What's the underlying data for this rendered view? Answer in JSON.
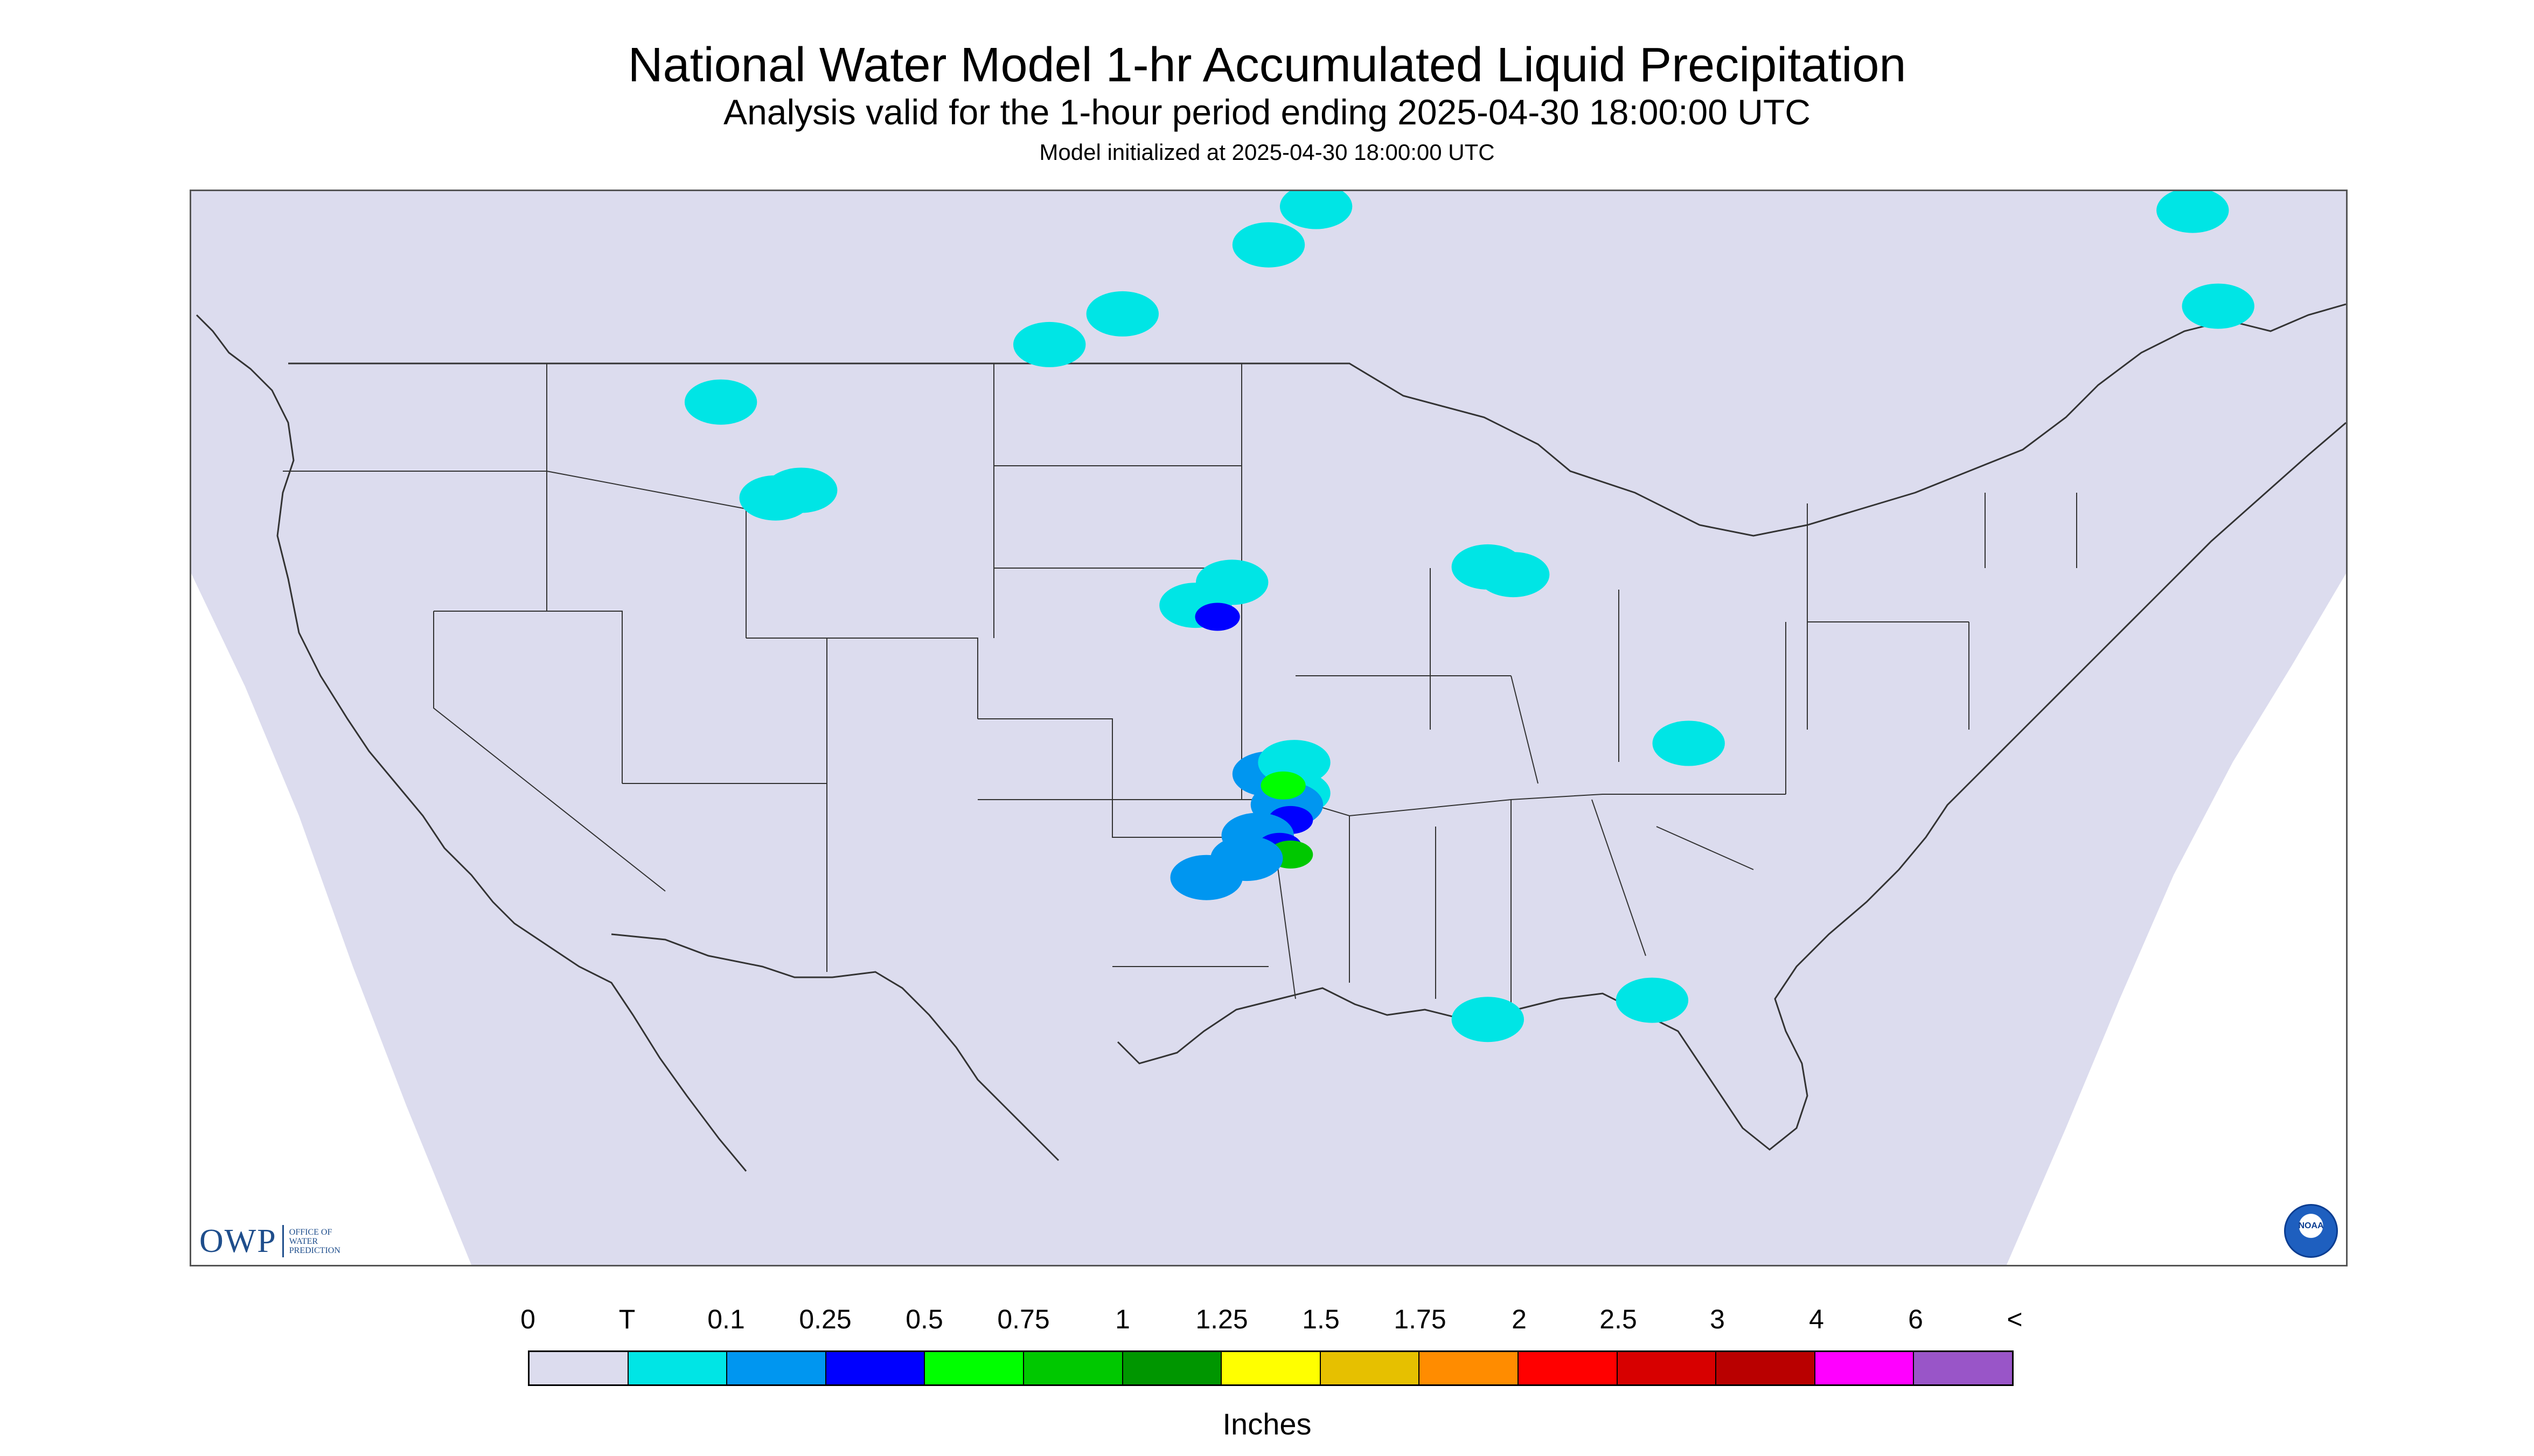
{
  "header": {
    "title": "National Water Model 1-hr Accumulated Liquid Precipitation",
    "subtitle": "Analysis valid for the 1-hour period ending 2025-04-30 18:00:00 UTC",
    "init": "Model initialized at 2025-04-30 18:00:00 UTC"
  },
  "logos": {
    "owp_mark": "OWP",
    "owp_text": [
      "Office of",
      "Water",
      "Prediction"
    ],
    "noaa": "NOAA"
  },
  "legend": {
    "labels": [
      "0",
      "T",
      "0.1",
      "0.25",
      "0.5",
      "0.75",
      "1",
      "1.25",
      "1.5",
      "1.75",
      "2",
      "2.5",
      "3",
      "4",
      "6",
      "<"
    ],
    "colors": [
      "#dcdcee",
      "#00e5e5",
      "#0096f0",
      "#0000ff",
      "#00ff00",
      "#00c800",
      "#009600",
      "#ffff00",
      "#e6c000",
      "#ff8c00",
      "#ff0000",
      "#d70000",
      "#b90000",
      "#ff00ff",
      "#9955c8"
    ],
    "units": "Inches"
  },
  "map": {
    "background_color": "#dcdcee",
    "outside_color": "#ffffff",
    "border_color": "#333333",
    "precip_cells": [
      {
        "lon": -94.8,
        "lat": 35.3,
        "cat": 1
      },
      {
        "lon": -95.5,
        "lat": 35.8,
        "cat": 2
      },
      {
        "lon": -95.0,
        "lat": 35.0,
        "cat": 2
      },
      {
        "lon": -94.9,
        "lat": 34.6,
        "cat": 3
      },
      {
        "lon": -94.8,
        "lat": 36.1,
        "cat": 1
      },
      {
        "lon": -95.8,
        "lat": 34.2,
        "cat": 2
      },
      {
        "lon": -95.2,
        "lat": 33.9,
        "cat": 3
      },
      {
        "lon": -94.9,
        "lat": 33.7,
        "cat": 5
      },
      {
        "lon": -95.1,
        "lat": 35.5,
        "cat": 4
      },
      {
        "lon": -96.1,
        "lat": 33.6,
        "cat": 2
      },
      {
        "lon": -97.2,
        "lat": 33.1,
        "cat": 2
      },
      {
        "lon": -97.5,
        "lat": 40.2,
        "cat": 1
      },
      {
        "lon": -96.5,
        "lat": 40.8,
        "cat": 1
      },
      {
        "lon": -96.9,
        "lat": 39.9,
        "cat": 3
      },
      {
        "lon": -89.5,
        "lat": 41.2,
        "cat": 1
      },
      {
        "lon": -88.8,
        "lat": 41.0,
        "cat": 1
      },
      {
        "lon": -109.0,
        "lat": 43.0,
        "cat": 1
      },
      {
        "lon": -108.3,
        "lat": 43.2,
        "cat": 1
      },
      {
        "lon": -110.5,
        "lat": 45.5,
        "cat": 1
      },
      {
        "lon": -101.5,
        "lat": 47.0,
        "cat": 1
      },
      {
        "lon": -99.5,
        "lat": 47.8,
        "cat": 1
      },
      {
        "lon": -95.5,
        "lat": 49.6,
        "cat": 1
      },
      {
        "lon": -94.2,
        "lat": 50.6,
        "cat": 1
      },
      {
        "lon": -70.2,
        "lat": 50.5,
        "cat": 1
      },
      {
        "lon": -69.5,
        "lat": 48.0,
        "cat": 1
      },
      {
        "lon": -84.0,
        "lat": 36.6,
        "cat": 1
      },
      {
        "lon": -85.0,
        "lat": 29.9,
        "cat": 1
      },
      {
        "lon": -89.5,
        "lat": 29.4,
        "cat": 1
      }
    ]
  }
}
